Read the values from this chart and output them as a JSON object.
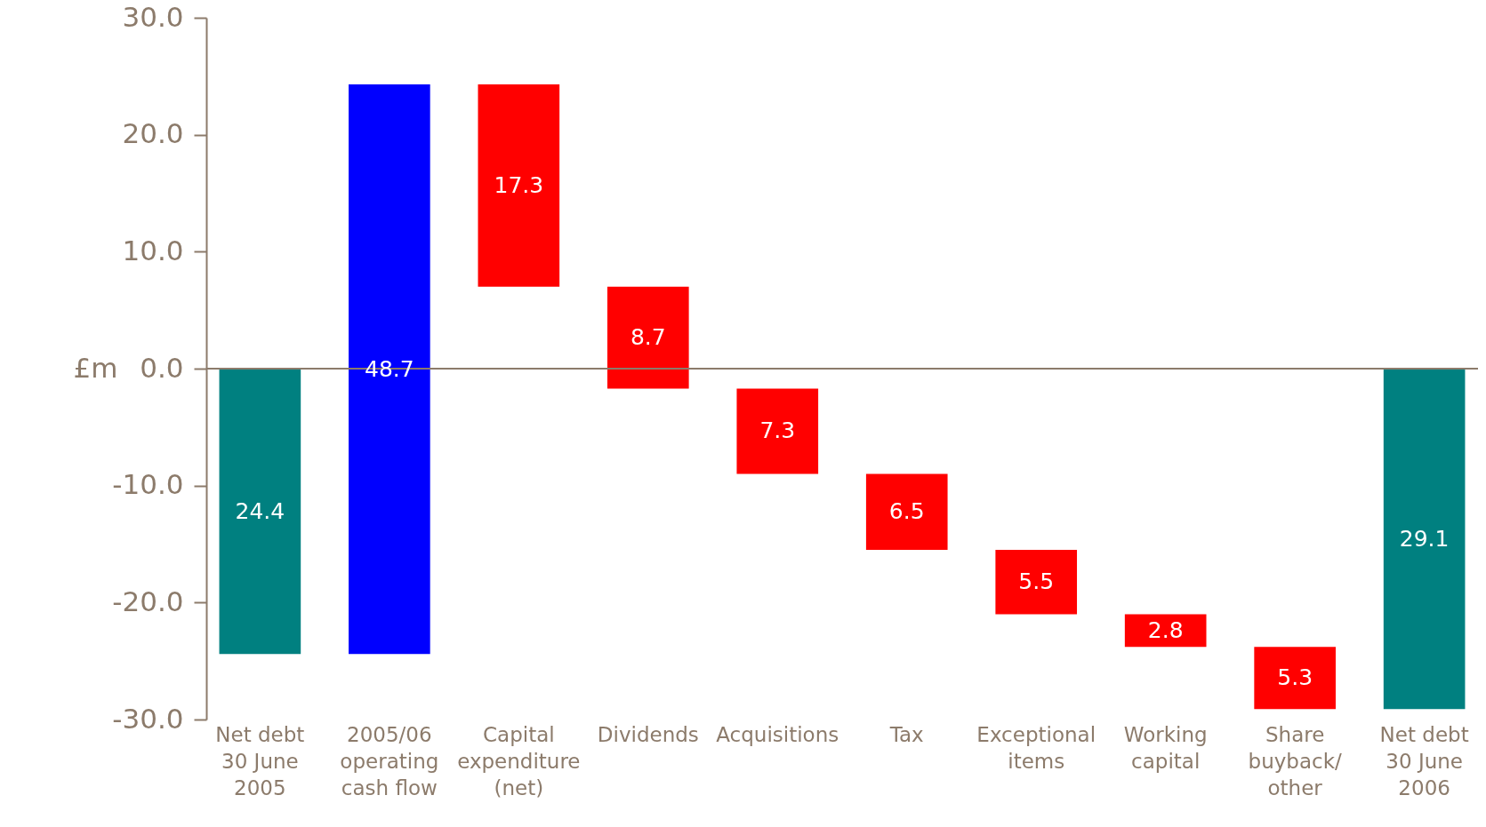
{
  "chart_data": {
    "type": "bar",
    "ylabel": "£m",
    "categories": [
      "Net debt\n30 June\n2005",
      "2005/06\noperating\ncash flow",
      "Capital\nexpenditure\n(net)",
      "Dividends",
      "Acquisitions",
      "Tax",
      "Exceptional\nitems",
      "Working\ncapital",
      "Share\nbuyback/\nother",
      "Net debt\n30 June\n2006"
    ],
    "base": [
      0,
      -24.4,
      24.3,
      7.0,
      -1.7,
      -9.0,
      -15.5,
      -21.0,
      -23.8,
      0
    ],
    "values": [
      -24.4,
      48.7,
      -17.3,
      -8.7,
      -7.3,
      -6.5,
      -5.5,
      -2.8,
      -5.3,
      -29.1
    ],
    "value_labels": [
      "24.4",
      "48.7",
      "17.3",
      "8.7",
      "7.3",
      "6.5",
      "5.5",
      "2.8",
      "5.3",
      "29.1"
    ],
    "colors": [
      "#008080",
      "#0000ff",
      "#ff0000",
      "#ff0000",
      "#ff0000",
      "#ff0000",
      "#ff0000",
      "#ff0000",
      "#ff0000",
      "#008080"
    ],
    "ylim": [
      -30,
      30
    ],
    "yticks": [
      {
        "value": -30,
        "label": "-30.0"
      },
      {
        "value": -20,
        "label": "-20.0"
      },
      {
        "value": -10,
        "label": "-10.0"
      },
      {
        "value": 0,
        "label": "0.0"
      },
      {
        "value": 10,
        "label": "10.0"
      },
      {
        "value": 20,
        "label": "20.0"
      },
      {
        "value": 30,
        "label": "30.0"
      }
    ],
    "ref_lines": [
      {
        "axis": "y",
        "value": 0,
        "color": "#8c7b6b"
      }
    ],
    "grid": false,
    "legend": false
  }
}
